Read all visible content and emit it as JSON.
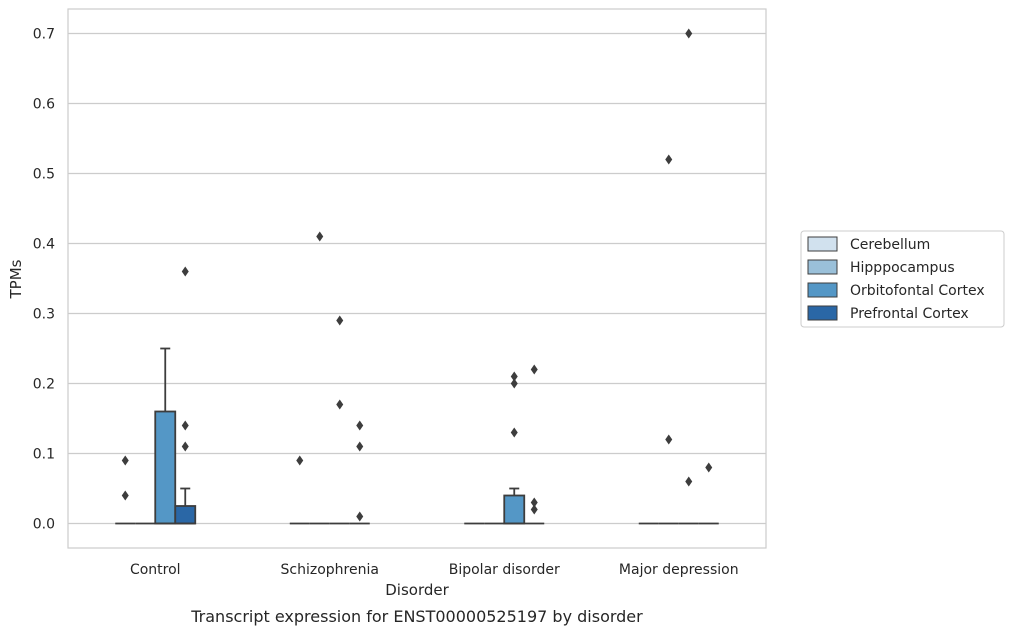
{
  "chart_data": {
    "type": "box",
    "caption": "Transcript expression for ENST00000525197 by disorder",
    "xlabel": "Disorder",
    "ylabel": "TPMs",
    "ylim": [
      -0.035,
      0.735
    ],
    "yticks": [
      0.0,
      0.1,
      0.2,
      0.3,
      0.4,
      0.5,
      0.6,
      0.7
    ],
    "ytick_labels": [
      "0.0",
      "0.1",
      "0.2",
      "0.3",
      "0.4",
      "0.5",
      "0.6",
      "0.7"
    ],
    "grid": true,
    "legend_position": "right",
    "categories": [
      "Control",
      "Schizophrenia",
      "Bipolar disorder",
      "Major depression"
    ],
    "series": [
      {
        "name": "Cerebellum",
        "color": "#d1e1ee",
        "boxes": [
          {
            "q1": 0,
            "median": 0,
            "q3": 0,
            "whisker_low": 0,
            "whisker_high": 0,
            "outliers": [
              0.09,
              0.04
            ]
          },
          {
            "q1": 0,
            "median": 0,
            "q3": 0,
            "whisker_low": 0,
            "whisker_high": 0,
            "outliers": [
              0.09
            ]
          },
          {
            "q1": 0,
            "median": 0,
            "q3": 0,
            "whisker_low": 0,
            "whisker_high": 0,
            "outliers": []
          },
          {
            "q1": 0,
            "median": 0,
            "q3": 0,
            "whisker_low": 0,
            "whisker_high": 0,
            "outliers": []
          }
        ]
      },
      {
        "name": "Hipppocampus",
        "color": "#9ac0d9",
        "boxes": [
          {
            "q1": 0,
            "median": 0,
            "q3": 0,
            "whisker_low": 0,
            "whisker_high": 0,
            "outliers": []
          },
          {
            "q1": 0,
            "median": 0,
            "q3": 0,
            "whisker_low": 0,
            "whisker_high": 0,
            "outliers": [
              0.41
            ]
          },
          {
            "q1": 0,
            "median": 0,
            "q3": 0,
            "whisker_low": 0,
            "whisker_high": 0,
            "outliers": []
          },
          {
            "q1": 0,
            "median": 0,
            "q3": 0,
            "whisker_low": 0,
            "whisker_high": 0,
            "outliers": [
              0.52,
              0.12
            ]
          }
        ]
      },
      {
        "name": "Orbitofontal Cortex",
        "color": "#5497c6",
        "boxes": [
          {
            "q1": 0,
            "median": 0,
            "q3": 0.16,
            "whisker_low": 0,
            "whisker_high": 0.25,
            "outliers": []
          },
          {
            "q1": 0,
            "median": 0,
            "q3": 0,
            "whisker_low": 0,
            "whisker_high": 0,
            "outliers": [
              0.29,
              0.17
            ]
          },
          {
            "q1": 0,
            "median": 0,
            "q3": 0.04,
            "whisker_low": 0,
            "whisker_high": 0.05,
            "outliers": [
              0.21,
              0.2,
              0.13
            ]
          },
          {
            "q1": 0,
            "median": 0,
            "q3": 0,
            "whisker_low": 0,
            "whisker_high": 0,
            "outliers": [
              0.7,
              0.06
            ]
          }
        ]
      },
      {
        "name": "Prefrontal Cortex",
        "color": "#2a67a6",
        "boxes": [
          {
            "q1": 0,
            "median": 0,
            "q3": 0.025,
            "whisker_low": 0,
            "whisker_high": 0.05,
            "outliers": [
              0.36,
              0.14,
              0.11
            ]
          },
          {
            "q1": 0,
            "median": 0,
            "q3": 0,
            "whisker_low": 0,
            "whisker_high": 0,
            "outliers": [
              0.14,
              0.11,
              0.01
            ]
          },
          {
            "q1": 0,
            "median": 0,
            "q3": 0,
            "whisker_low": 0,
            "whisker_high": 0,
            "outliers": [
              0.22,
              0.03,
              0.02
            ]
          },
          {
            "q1": 0,
            "median": 0,
            "q3": 0,
            "whisker_low": 0,
            "whisker_high": 0,
            "outliers": [
              0.08
            ]
          }
        ]
      }
    ]
  }
}
